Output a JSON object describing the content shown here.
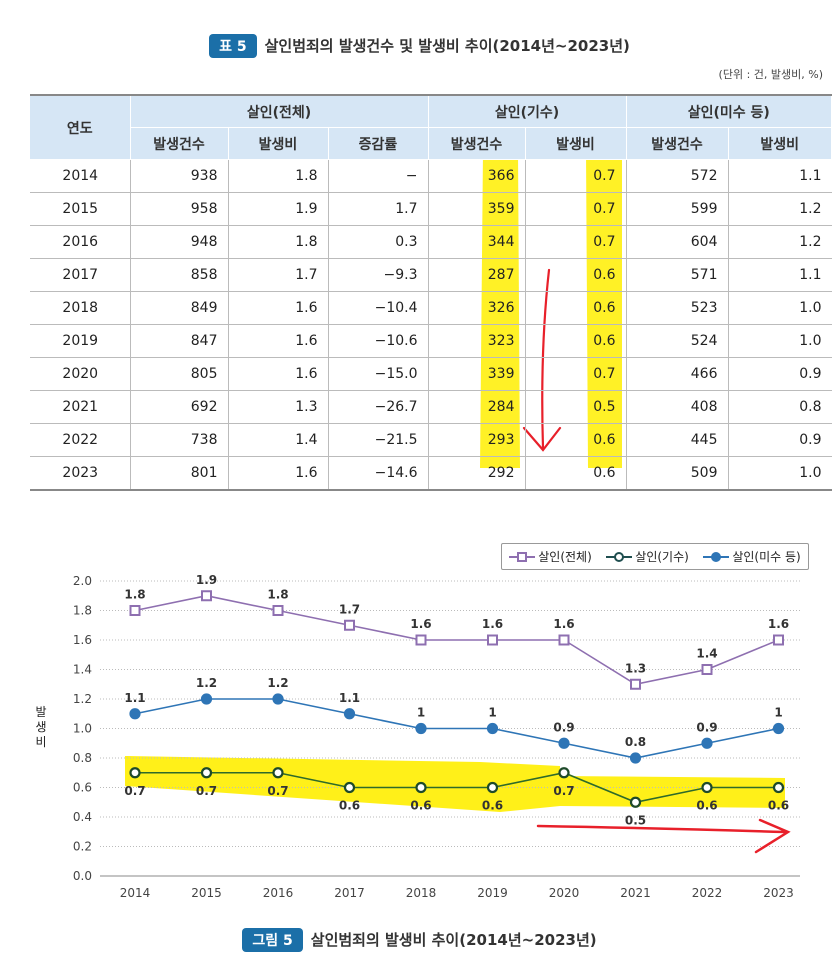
{
  "table": {
    "badge": "표 5",
    "title": "살인범죄의 발생건수 및 발생비 추이(2014년~2023년)",
    "unit": "(단위 : 건, 발생비, %)",
    "headers": {
      "year": "연도",
      "groups": [
        "살인(전체)",
        "살인(기수)",
        "살인(미수 등)"
      ],
      "sub": [
        "발생건수",
        "발생비",
        "증감률",
        "발생건수",
        "발생비",
        "발생건수",
        "발생비"
      ]
    },
    "rows": [
      [
        "2014",
        "938",
        "1.8",
        "−",
        "366",
        "0.7",
        "572",
        "1.1"
      ],
      [
        "2015",
        "958",
        "1.9",
        "1.7",
        "359",
        "0.7",
        "599",
        "1.2"
      ],
      [
        "2016",
        "948",
        "1.8",
        "0.3",
        "344",
        "0.7",
        "604",
        "1.2"
      ],
      [
        "2017",
        "858",
        "1.7",
        "−9.3",
        "287",
        "0.6",
        "571",
        "1.1"
      ],
      [
        "2018",
        "849",
        "1.6",
        "−10.4",
        "326",
        "0.6",
        "523",
        "1.0"
      ],
      [
        "2019",
        "847",
        "1.6",
        "−10.6",
        "323",
        "0.6",
        "524",
        "1.0"
      ],
      [
        "2020",
        "805",
        "1.6",
        "−15.0",
        "339",
        "0.7",
        "466",
        "0.9"
      ],
      [
        "2021",
        "692",
        "1.3",
        "−26.7",
        "284",
        "0.5",
        "408",
        "0.8"
      ],
      [
        "2022",
        "738",
        "1.4",
        "−21.5",
        "293",
        "0.6",
        "445",
        "0.9"
      ],
      [
        "2023",
        "801",
        "1.6",
        "−14.6",
        "292",
        "0.6",
        "509",
        "1.0"
      ]
    ]
  },
  "chart_data": {
    "type": "line",
    "x": [
      "2014",
      "2015",
      "2016",
      "2017",
      "2018",
      "2019",
      "2020",
      "2021",
      "2022",
      "2023"
    ],
    "ylabel": "발생비",
    "ylim": [
      0,
      2.0
    ],
    "yticks": [
      "0.0",
      "0.2",
      "0.4",
      "0.6",
      "0.8",
      "1.0",
      "1.2",
      "1.4",
      "1.6",
      "1.8",
      "2.0"
    ],
    "grid": true,
    "legend": "top-right",
    "series": [
      {
        "name": "살인(전체)",
        "color": "#8e6fb0",
        "marker": "square-open",
        "values": [
          1.8,
          1.9,
          1.8,
          1.7,
          1.6,
          1.6,
          1.6,
          1.3,
          1.4,
          1.6
        ]
      },
      {
        "name": "살인(기수)",
        "color": "#1f4e4f",
        "marker": "circle-open",
        "values": [
          0.7,
          0.7,
          0.7,
          0.6,
          0.6,
          0.6,
          0.7,
          0.5,
          0.6,
          0.6
        ]
      },
      {
        "name": "살인(미수 등)",
        "color": "#2e75b6",
        "marker": "circle-filled",
        "values": [
          1.1,
          1.2,
          1.2,
          1.1,
          1.0,
          1.0,
          0.9,
          0.8,
          0.9,
          1.0
        ]
      }
    ]
  },
  "caption": {
    "badge": "그림 5",
    "title": "살인범죄의 발생비 추이(2014년~2023년)"
  },
  "colors": {
    "highlight": "#ffee00",
    "annotation": "#e8202a",
    "header": "#d6e6f5",
    "badge": "#1b6fa8"
  }
}
